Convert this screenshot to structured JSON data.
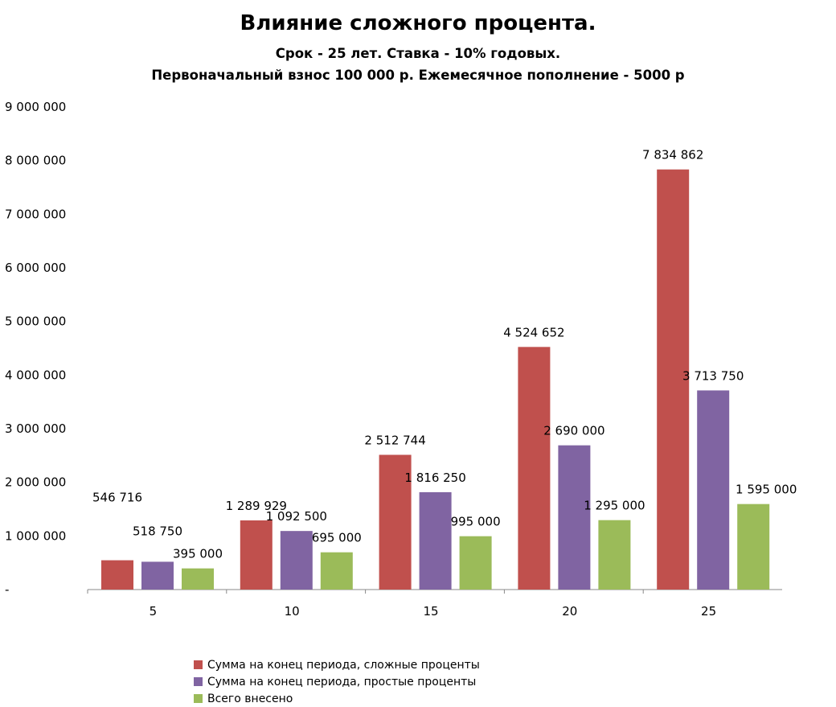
{
  "chart_data": {
    "type": "bar",
    "title": "Влияние сложного процента.",
    "subtitle_lines": [
      "Срок - 25 лет. Ставка - 10% годовых.",
      "Первоначальный взнос 100 000 р. Ежемесячное пополнение - 5000 р"
    ],
    "categories": [
      "5",
      "10",
      "15",
      "20",
      "25"
    ],
    "series": [
      {
        "name": "Сумма на конец периода, сложные проценты",
        "color": "#c0504d",
        "values": [
          546716,
          1289929,
          2512744,
          4524652,
          7834862
        ],
        "labels": [
          "546 716",
          "1 289 929",
          "2 512 744",
          "4 524 652",
          "7 834 862"
        ]
      },
      {
        "name": "Сумма на конец периода, простые проценты",
        "color": "#8064a2",
        "values": [
          518750,
          1092500,
          1816250,
          2690000,
          3713750
        ],
        "labels": [
          "518 750",
          "1 092 500",
          "1 816 250",
          "2 690 000",
          "3 713 750"
        ]
      },
      {
        "name": "Всего внесено",
        "color": "#9bbb59",
        "values": [
          395000,
          695000,
          995000,
          1295000,
          1595000
        ],
        "labels": [
          "395 000",
          "695 000",
          "995 000",
          "1 295 000",
          "1 595 000"
        ]
      }
    ],
    "ylim": [
      0,
      9000000
    ],
    "y_ticks": [
      0,
      1000000,
      2000000,
      3000000,
      4000000,
      5000000,
      6000000,
      7000000,
      8000000,
      9000000
    ],
    "y_tick_labels": [
      "-",
      "1 000 000",
      "2 000 000",
      "3 000 000",
      "4 000 000",
      "5 000 000",
      "6 000 000",
      "7 000 000",
      "8 000 000",
      "9 000 000"
    ],
    "grid": false,
    "legend_position": "bottom-left"
  }
}
